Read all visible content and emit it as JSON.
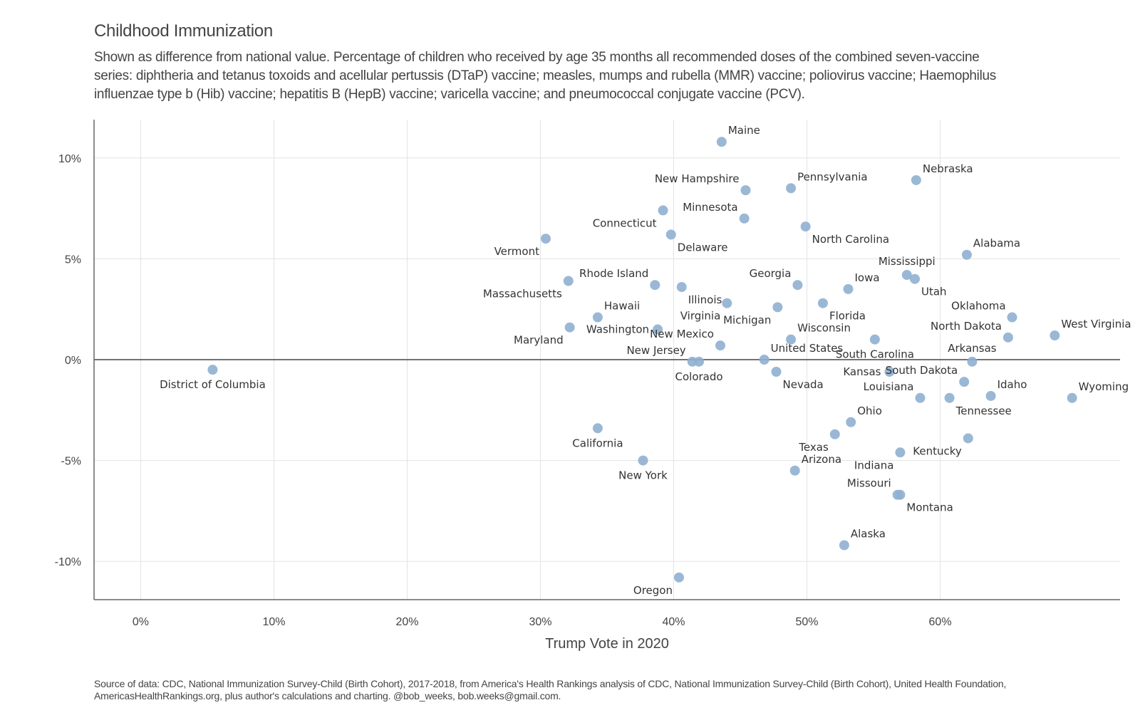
{
  "title": "Childhood Immunization",
  "subtitle": "Shown as difference from national value. Percentage of children who received by age 35 months all recommended doses of the combined seven-vaccine series: diphtheria and tetanus toxoids and acellular pertussis (DTaP) vaccine; measles, mumps and rubella (MMR) vaccine; poliovirus vaccine; Haemophilus influenzae type b (Hib) vaccine; hepatitis B (HepB) vaccine; varicella vaccine; and pneumococcal conjugate vaccine (PCV).",
  "caption": "Source of data: CDC, National Immunization Survey-Child (Birth Cohort), 2017-2018, from America's Health Rankings analysis of CDC, National Immunization Survey-Child (Birth Cohort), United Health Foundation, AmericasHealthRankings.org, plus author's calculations and charting. @bob_weeks, bob.weeks@gmail.com.",
  "colors": {
    "point": "#8fb0d0",
    "grid": "#e3e3e3",
    "axis": "#666666",
    "zero_line": "#444444"
  },
  "chart_data": {
    "type": "scatter",
    "xlabel": "Trump Vote in 2020",
    "ylabel": "",
    "xlim": [
      -3.5,
      73.5
    ],
    "ylim": [
      -11.9,
      11.9
    ],
    "x_ticks": [
      0,
      10,
      20,
      30,
      40,
      50,
      60
    ],
    "x_tick_labels": [
      "0%",
      "10%",
      "20%",
      "30%",
      "40%",
      "50%",
      "60%"
    ],
    "y_ticks": [
      10,
      5,
      0,
      -5,
      -10
    ],
    "y_tick_labels": [
      "10%",
      "5%",
      "0%",
      "-5%",
      "-10%"
    ],
    "grid": true,
    "reference_line_y": 0,
    "points": [
      {
        "label": "Maine",
        "x": 43.6,
        "y": 10.8,
        "lpos": "ne"
      },
      {
        "label": "New Hampshire",
        "x": 45.4,
        "y": 8.4,
        "lpos": "nw"
      },
      {
        "label": "Pennsylvania",
        "x": 48.8,
        "y": 8.5,
        "lpos": "ne"
      },
      {
        "label": "Nebraska",
        "x": 58.2,
        "y": 8.9,
        "lpos": "ne"
      },
      {
        "label": "Minnesota",
        "x": 45.3,
        "y": 7.0,
        "lpos": "nw"
      },
      {
        "label": "Connecticut",
        "x": 39.2,
        "y": 7.4,
        "lpos": "sw"
      },
      {
        "label": "North Carolina",
        "x": 49.9,
        "y": 6.6,
        "lpos": "se"
      },
      {
        "label": "Delaware",
        "x": 39.8,
        "y": 6.2,
        "lpos": "se"
      },
      {
        "label": "Vermont",
        "x": 30.4,
        "y": 6.0,
        "lpos": "sw"
      },
      {
        "label": "Alabama",
        "x": 62.0,
        "y": 5.2,
        "lpos": "ne"
      },
      {
        "label": "Mississippi",
        "x": 57.5,
        "y": 4.2,
        "lpos": "n"
      },
      {
        "label": "Utah",
        "x": 58.1,
        "y": 4.0,
        "lpos": "se"
      },
      {
        "label": "Massachusetts",
        "x": 32.1,
        "y": 3.9,
        "lpos": "sw"
      },
      {
        "label": "Rhode Island",
        "x": 38.6,
        "y": 3.7,
        "lpos": "nw"
      },
      {
        "label": "Illinois",
        "x": 40.6,
        "y": 3.6,
        "lpos": "se"
      },
      {
        "label": "Georgia",
        "x": 49.3,
        "y": 3.7,
        "lpos": "nw"
      },
      {
        "label": "Iowa",
        "x": 53.1,
        "y": 3.5,
        "lpos": "ne"
      },
      {
        "label": "Virginia",
        "x": 44.0,
        "y": 2.8,
        "lpos": "sw"
      },
      {
        "label": "Michigan",
        "x": 47.8,
        "y": 2.6,
        "lpos": "sw"
      },
      {
        "label": "Florida",
        "x": 51.2,
        "y": 2.8,
        "lpos": "se"
      },
      {
        "label": "Oklahoma",
        "x": 65.4,
        "y": 2.1,
        "lpos": "nw"
      },
      {
        "label": "Hawaii",
        "x": 34.3,
        "y": 2.1,
        "lpos": "ne"
      },
      {
        "label": "Maryland",
        "x": 32.2,
        "y": 1.6,
        "lpos": "sw"
      },
      {
        "label": "Washington",
        "x": 38.8,
        "y": 1.5,
        "lpos": "w"
      },
      {
        "label": "North Dakota",
        "x": 65.1,
        "y": 1.1,
        "lpos": "nw"
      },
      {
        "label": "West Virginia",
        "x": 68.6,
        "y": 1.2,
        "lpos": "ne"
      },
      {
        "label": "Wisconsin",
        "x": 48.8,
        "y": 1.0,
        "lpos": "ne"
      },
      {
        "label": "New Mexico",
        "x": 43.5,
        "y": 0.7,
        "lpos": "nw"
      },
      {
        "label": "South Carolina",
        "x": 55.1,
        "y": 1.0,
        "lpos": "s"
      },
      {
        "label": "United States",
        "x": 46.8,
        "y": 0.0,
        "lpos": "ne"
      },
      {
        "label": "New Jersey",
        "x": 41.4,
        "y": -0.1,
        "lpos": "nw"
      },
      {
        "label": "Colorado",
        "x": 41.9,
        "y": -0.1,
        "lpos": "s"
      },
      {
        "label": "Arkansas",
        "x": 62.4,
        "y": -0.1,
        "lpos": "n"
      },
      {
        "label": "Kansas",
        "x": 56.2,
        "y": -0.6,
        "lpos": "w"
      },
      {
        "label": "Nevada",
        "x": 47.7,
        "y": -0.6,
        "lpos": "se"
      },
      {
        "label": "South Dakota",
        "x": 61.8,
        "y": -1.1,
        "lpos": "nw"
      },
      {
        "label": "Louisiana",
        "x": 58.5,
        "y": -1.9,
        "lpos": "nw"
      },
      {
        "label": "Tennessee",
        "x": 60.7,
        "y": -1.9,
        "lpos": "se"
      },
      {
        "label": "Idaho",
        "x": 63.8,
        "y": -1.8,
        "lpos": "ne"
      },
      {
        "label": "Wyoming",
        "x": 69.9,
        "y": -1.9,
        "lpos": "ne"
      },
      {
        "label": "District of Columbia",
        "x": 5.4,
        "y": -0.5,
        "lpos": "s"
      },
      {
        "label": "Ohio",
        "x": 53.3,
        "y": -3.1,
        "lpos": "ne"
      },
      {
        "label": "Texas",
        "x": 52.1,
        "y": -3.7,
        "lpos": "sw"
      },
      {
        "label": "California",
        "x": 34.3,
        "y": -3.4,
        "lpos": "s"
      },
      {
        "label": "Kentucky",
        "x": 62.1,
        "y": -3.9,
        "lpos": "sw"
      },
      {
        "label": "Indiana",
        "x": 57.0,
        "y": -4.6,
        "lpos": "sw"
      },
      {
        "label": "New York",
        "x": 37.7,
        "y": -5.0,
        "lpos": "s"
      },
      {
        "label": "Arizona",
        "x": 49.1,
        "y": -5.5,
        "lpos": "ne"
      },
      {
        "label": "Missouri",
        "x": 56.8,
        "y": -6.7,
        "lpos": "nw"
      },
      {
        "label": "Montana",
        "x": 57.0,
        "y": -6.7,
        "lpos": "se"
      },
      {
        "label": "Alaska",
        "x": 52.8,
        "y": -9.2,
        "lpos": "ne"
      },
      {
        "label": "Oregon",
        "x": 40.4,
        "y": -10.8,
        "lpos": "sw"
      }
    ]
  }
}
